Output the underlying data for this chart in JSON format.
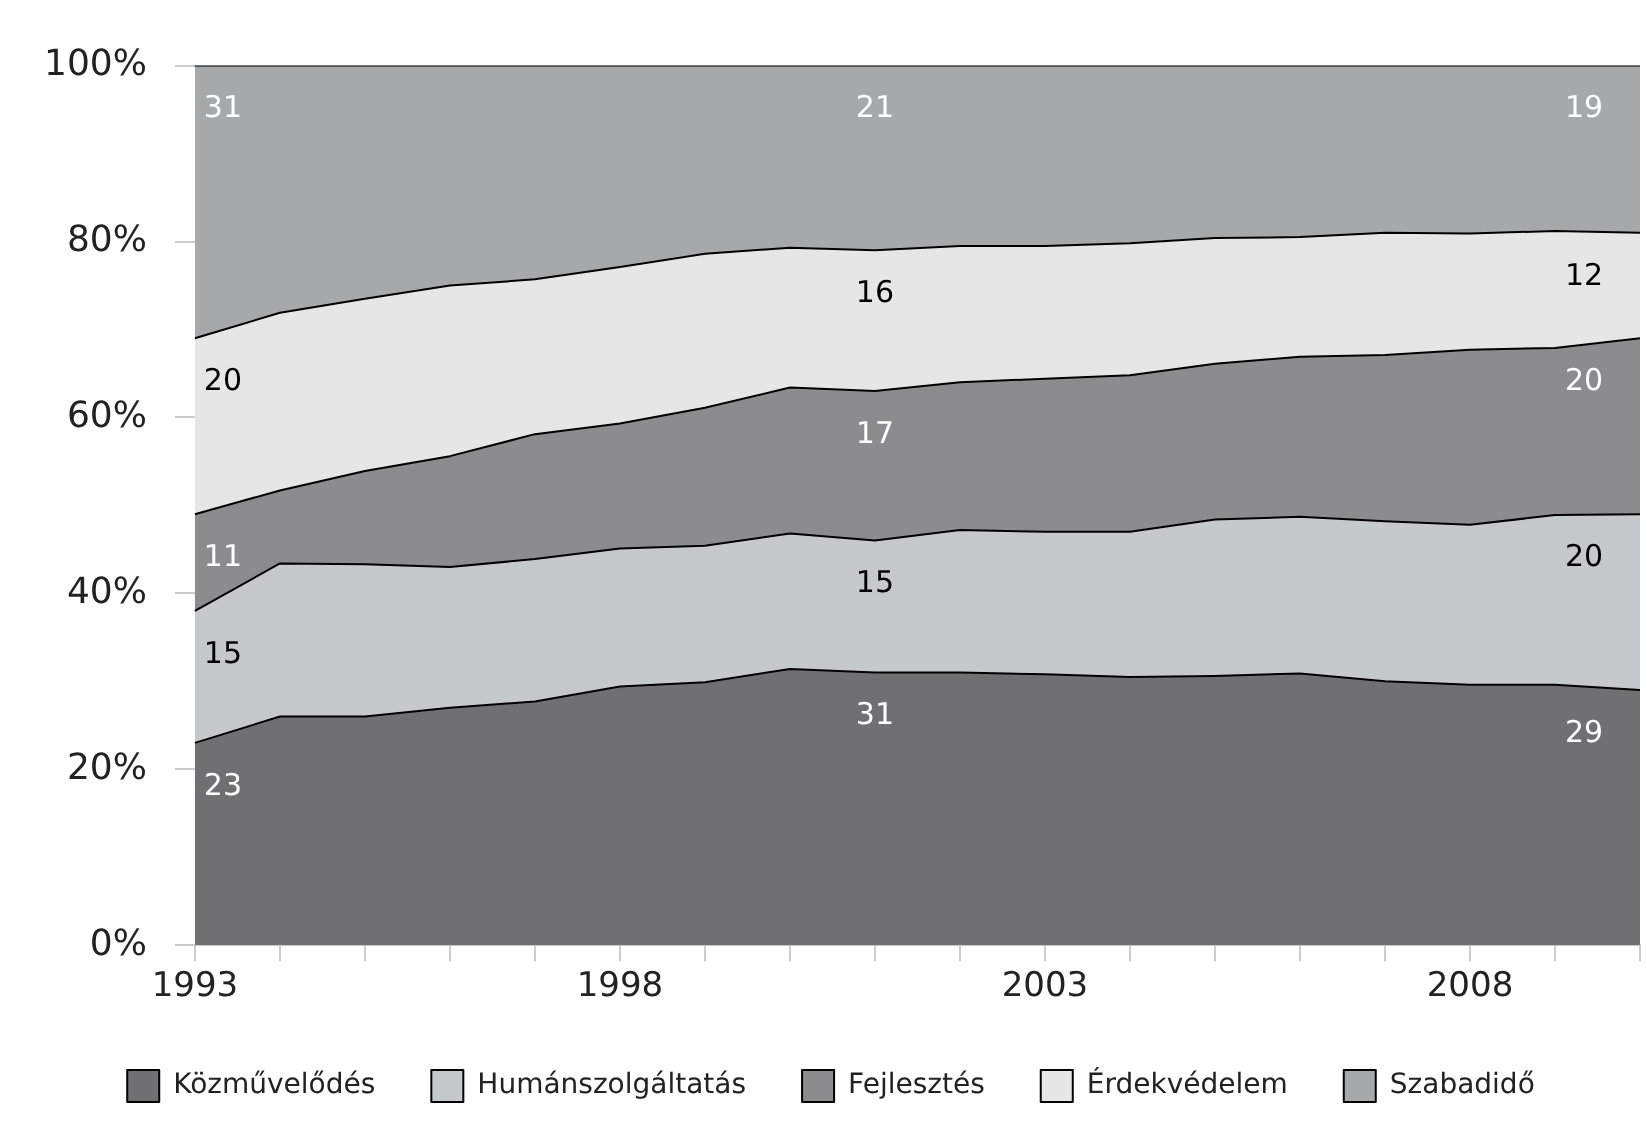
{
  "chart_data": {
    "type": "area",
    "stacked": true,
    "categories": [
      "1993",
      null,
      null,
      null,
      null,
      "1998",
      null,
      null,
      null,
      null,
      "2003",
      null,
      null,
      null,
      null,
      "2008",
      null,
      null
    ],
    "ylim": [
      0,
      100
    ],
    "yticks": [
      {
        "value": 0,
        "label": "0%"
      },
      {
        "value": 20,
        "label": "20%"
      },
      {
        "value": 40,
        "label": "40%"
      },
      {
        "value": 60,
        "label": "60%"
      },
      {
        "value": 80,
        "label": "80%"
      },
      {
        "value": 100,
        "label": "100%"
      }
    ],
    "grid": false,
    "legend": "bottom",
    "series": [
      {
        "name": "Közművelődés",
        "color": "#707072",
        "values": [
          23,
          26.0,
          26.0,
          27.0,
          27.7,
          29.4,
          29.9,
          31.4,
          31,
          31.0,
          30.8,
          30.5,
          30.6,
          30.9,
          30.0,
          29.6,
          29.6,
          29
        ],
        "value_labels": [
          "23",
          null,
          null,
          null,
          null,
          null,
          null,
          null,
          "31",
          null,
          null,
          null,
          null,
          null,
          null,
          null,
          null,
          "29"
        ]
      },
      {
        "name": "Humánszolgáltatás",
        "color": "#c6c9cc",
        "values": [
          15,
          17.4,
          17.3,
          16.0,
          16.2,
          15.7,
          15.5,
          15.4,
          15,
          16.2,
          16.2,
          16.5,
          17.8,
          17.8,
          18.2,
          18.2,
          19.3,
          20
        ],
        "value_labels": [
          "15",
          null,
          null,
          null,
          null,
          null,
          null,
          null,
          "15",
          null,
          null,
          null,
          null,
          null,
          null,
          null,
          null,
          "20"
        ]
      },
      {
        "name": "Fejlesztés",
        "color": "#8c8c8e",
        "values": [
          11,
          8.3,
          10.6,
          12.6,
          14.2,
          14.2,
          15.7,
          16.6,
          17,
          16.8,
          17.4,
          17.8,
          17.7,
          18.2,
          18.9,
          19.9,
          19.0,
          20
        ],
        "value_labels": [
          "11",
          null,
          null,
          null,
          null,
          null,
          null,
          null,
          "17",
          null,
          null,
          null,
          null,
          null,
          null,
          null,
          null,
          "20"
        ]
      },
      {
        "name": "Érdekvédelem",
        "color": "#e6e6e6",
        "values": [
          20,
          20.2,
          19.6,
          19.4,
          17.6,
          17.8,
          17.5,
          15.9,
          16,
          15.5,
          15.1,
          15.0,
          14.3,
          13.6,
          13.9,
          13.2,
          13.3,
          12
        ],
        "value_labels": [
          "20",
          null,
          null,
          null,
          null,
          null,
          null,
          null,
          "16",
          null,
          null,
          null,
          null,
          null,
          null,
          null,
          null,
          "12"
        ]
      },
      {
        "name": "Szabadidő",
        "color": "#a7a8aa",
        "values": [
          31,
          28.1,
          26.5,
          25.0,
          24.3,
          22.9,
          21.4,
          20.7,
          21,
          20.5,
          20.5,
          20.2,
          19.6,
          19.5,
          19.0,
          19.1,
          18.8,
          19
        ],
        "value_labels": [
          "31",
          null,
          null,
          null,
          null,
          null,
          null,
          null,
          "21",
          null,
          null,
          null,
          null,
          null,
          null,
          null,
          null,
          "19"
        ]
      }
    ]
  }
}
